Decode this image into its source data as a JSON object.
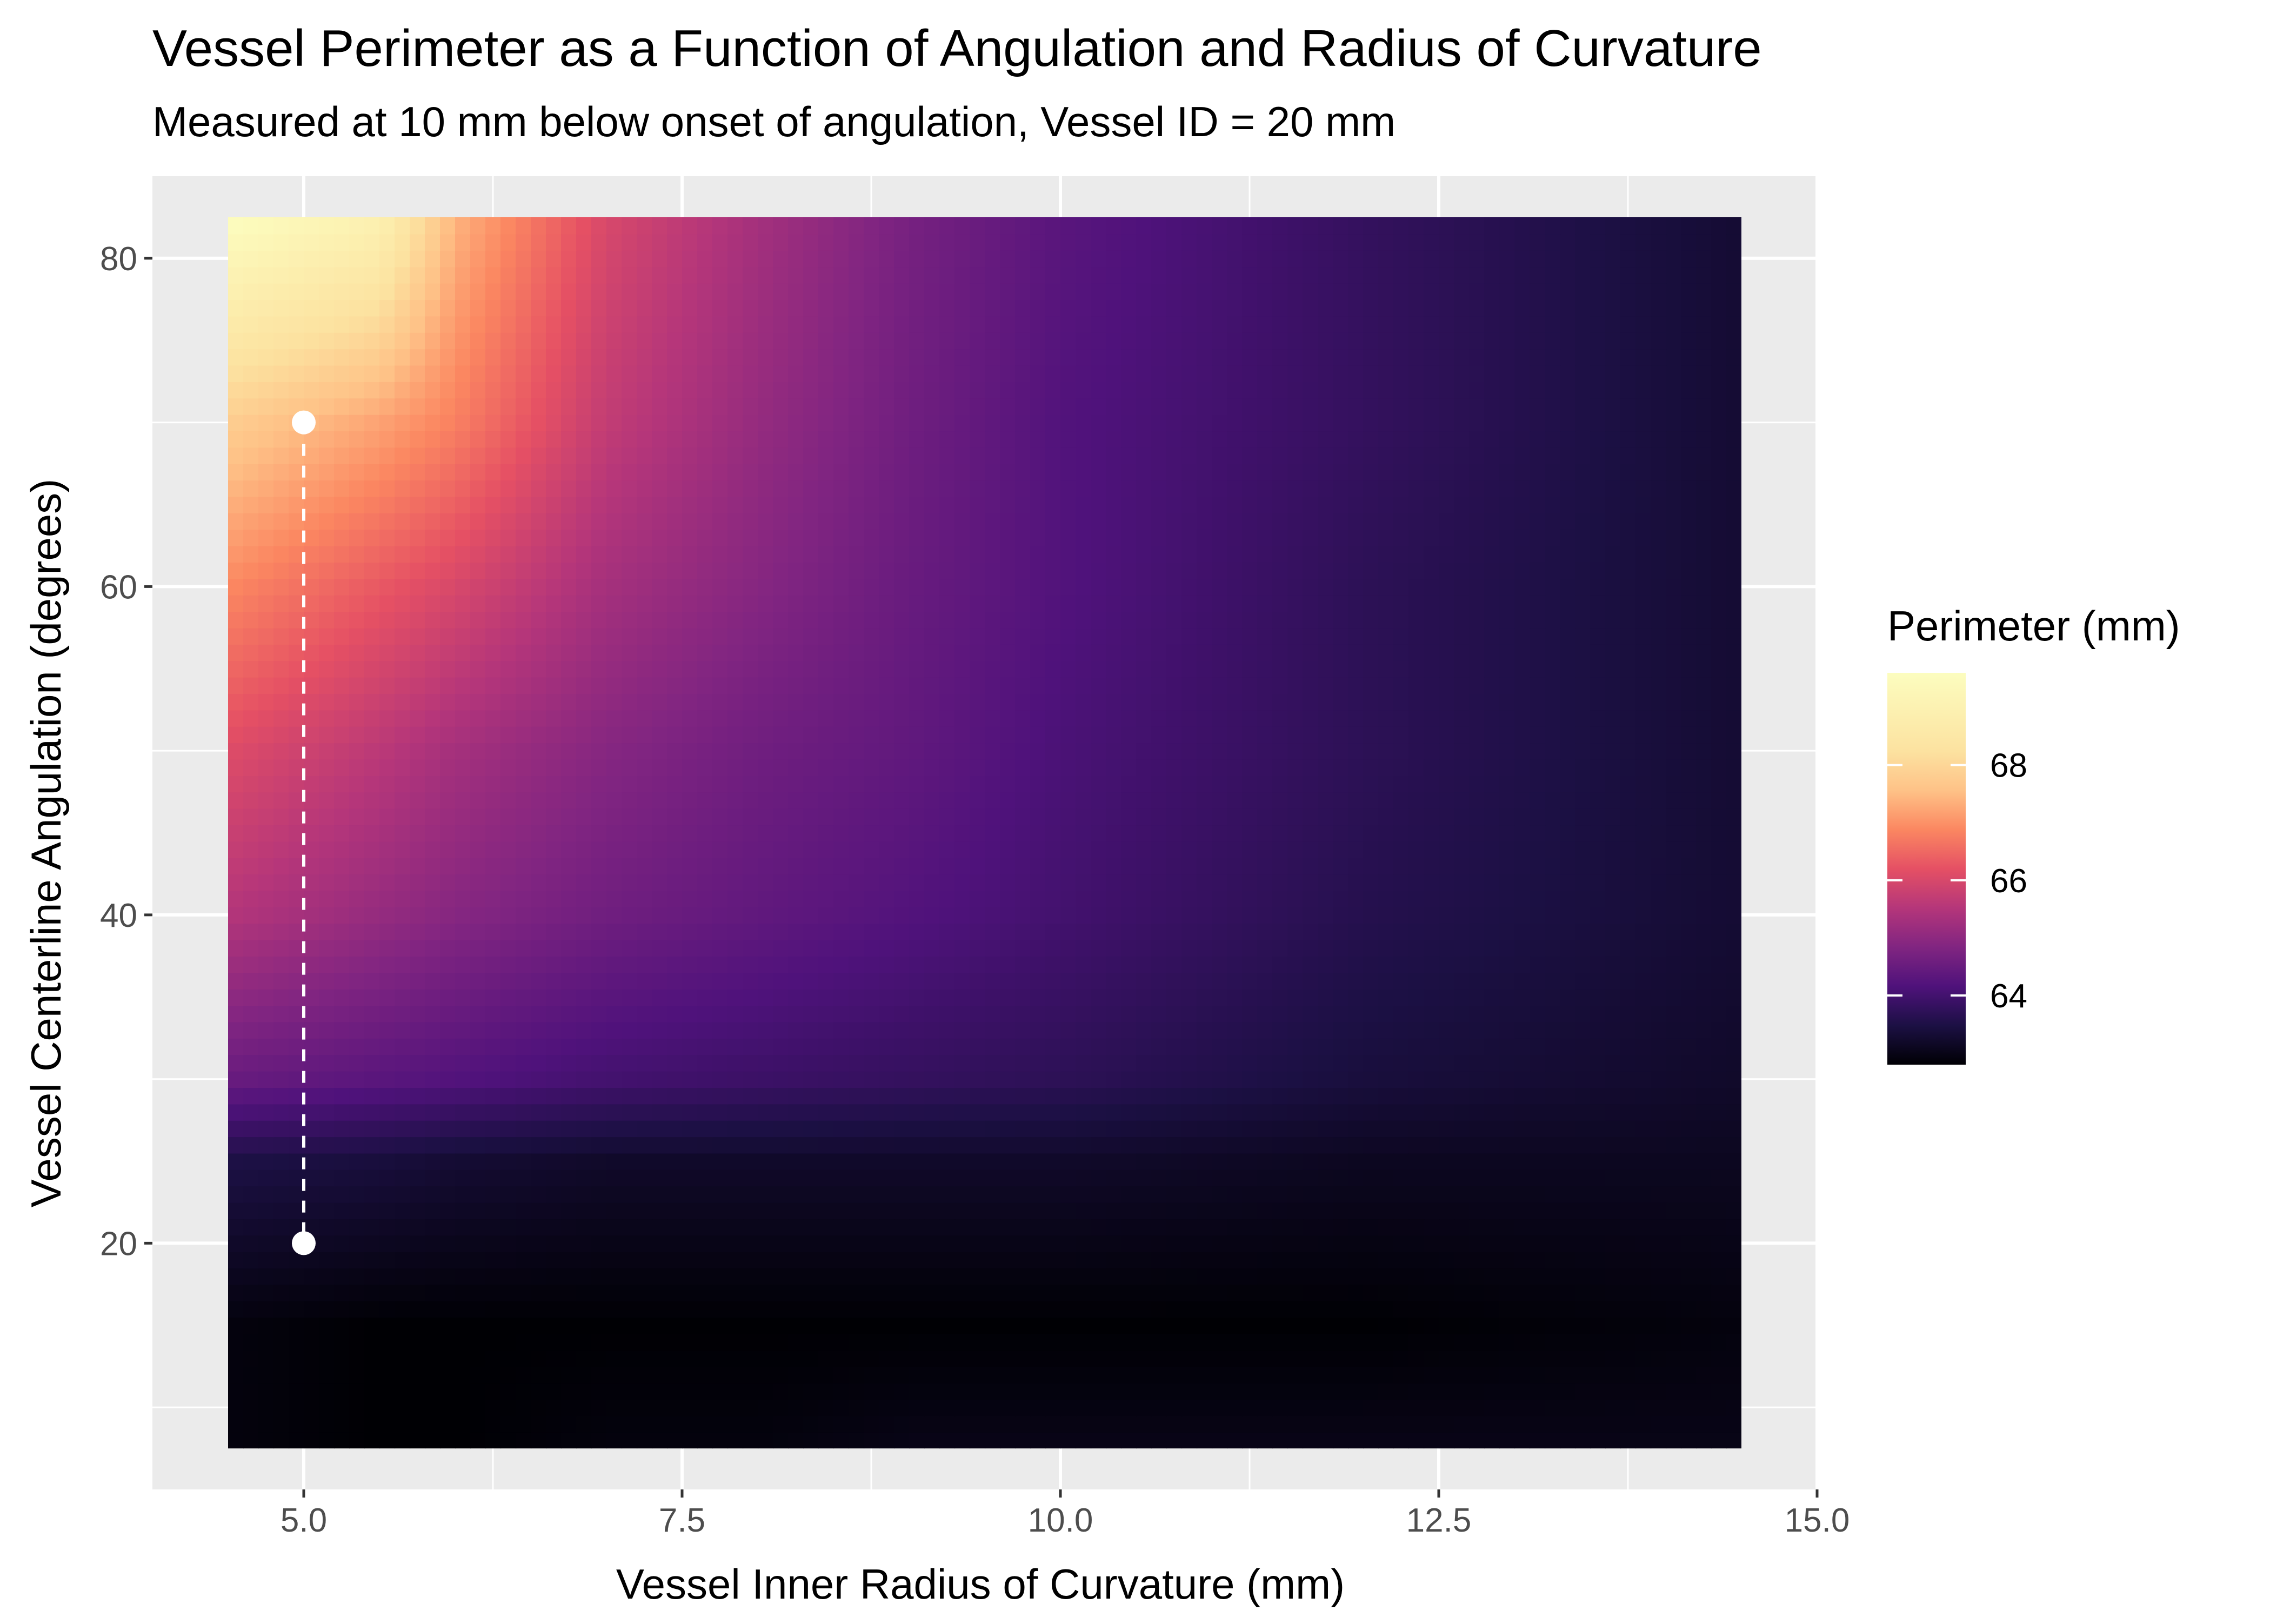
{
  "chart_data": {
    "type": "heatmap",
    "title": "Vessel Perimeter as a Function of Angulation and Radius of Curvature",
    "subtitle": "Measured at 10 mm below onset of angulation, Vessel ID = 20 mm",
    "xlabel": "Vessel Inner Radius of Curvature (mm)",
    "ylabel": "Vessel Centerline Angulation (degrees)",
    "xlim": [
      4,
      15
    ],
    "ylim": [
      5,
      85
    ],
    "x_ticks": [
      "5.0",
      "7.5",
      "10.0",
      "12.5",
      "15.0"
    ],
    "x_tick_values": [
      5,
      7.5,
      10,
      12.5,
      15
    ],
    "y_ticks": [
      "20",
      "40",
      "60",
      "80"
    ],
    "y_tick_values": [
      20,
      40,
      60,
      80
    ],
    "heatmap_x_range": [
      4.5,
      14.5
    ],
    "heatmap_y_range": [
      7.5,
      82.5
    ],
    "grid": true,
    "colormap": "magma",
    "fill_range": [
      62.8,
      69.6
    ],
    "surface_samples": {
      "radius": [
        4.5,
        5.5,
        6,
        7,
        8,
        9,
        10,
        12,
        14.5
      ],
      "angle": [
        7.5,
        15,
        25,
        30,
        40,
        50,
        60,
        70,
        82.5
      ],
      "perimeter_mm": [
        [
          62.9,
          62.8,
          62.8,
          62.9,
          62.9,
          63.0,
          63.0,
          63.0,
          63.0
        ],
        [
          62.9,
          62.8,
          62.8,
          62.8,
          62.8,
          62.8,
          62.8,
          62.8,
          62.9
        ],
        [
          63.5,
          63.4,
          63.3,
          63.2,
          63.2,
          63.2,
          63.2,
          63.1,
          63.1
        ],
        [
          64.5,
          64.3,
          64.2,
          64.0,
          63.9,
          63.8,
          63.7,
          63.4,
          63.2
        ],
        [
          65.5,
          65.1,
          64.9,
          64.6,
          64.4,
          64.2,
          64.0,
          63.6,
          63.3
        ],
        [
          66.1,
          65.6,
          65.3,
          64.9,
          64.6,
          64.4,
          64.1,
          63.7,
          63.3
        ],
        [
          66.9,
          66.3,
          66.0,
          65.3,
          64.9,
          64.5,
          64.2,
          63.7,
          63.3
        ],
        [
          67.8,
          67.2,
          66.8,
          65.7,
          65.1,
          64.6,
          64.2,
          63.8,
          63.3
        ],
        [
          69.6,
          69.0,
          67.4,
          66.0,
          65.3,
          64.7,
          64.3,
          63.8,
          63.3
        ]
      ]
    },
    "highlight": {
      "points": [
        {
          "x": 5,
          "y": 70
        },
        {
          "x": 5,
          "y": 20
        }
      ],
      "line_style": "dashed",
      "color": "#ffffff"
    },
    "legend": {
      "title": "Perimeter (mm)",
      "position": "right",
      "labels": [
        "68",
        "66",
        "64"
      ],
      "values": [
        68,
        66,
        64
      ]
    },
    "colors": {
      "panel_background": "#ebebeb",
      "gridline": "#ffffff",
      "tick_text": "#4d4d4d"
    }
  }
}
